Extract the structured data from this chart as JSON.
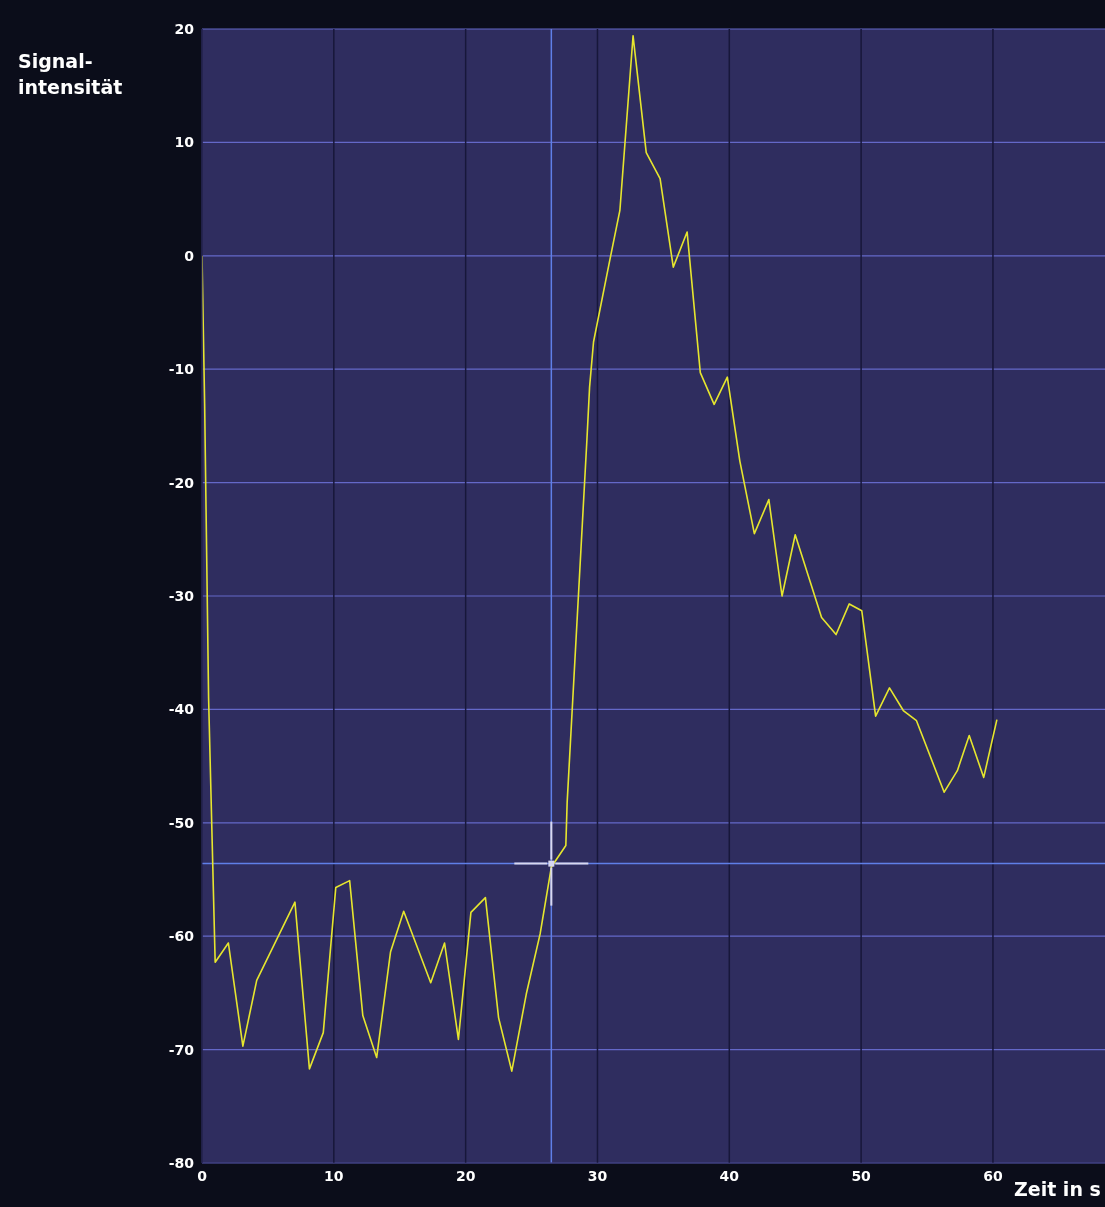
{
  "chart_data": {
    "type": "line",
    "xlabel": "Zeit in s",
    "ylabel": "Signal-intensität",
    "xlim": [
      0,
      68.5
    ],
    "xticks": [
      0,
      10,
      20,
      30,
      40,
      50,
      60
    ],
    "ylim": [
      -80,
      20
    ],
    "yticks": [
      -80,
      -70,
      -60,
      -50,
      -40,
      -30,
      -20,
      -10,
      0,
      10,
      20
    ],
    "grid": true,
    "marker": "none",
    "line_style": "solid",
    "ref_lines": [
      {
        "axis": "x",
        "value": 26.5,
        "color": "#5f7fe8"
      },
      {
        "axis": "y",
        "value": -53.6,
        "color": "#5f7fe8"
      }
    ],
    "series": [
      {
        "color": "#e6e62e",
        "x": [
          0,
          0.2,
          0.5,
          1.0,
          2.0,
          3.1,
          4.15,
          7.05,
          8.15,
          9.2,
          10.15,
          11.2,
          12.2,
          13.25,
          14.3,
          15.3,
          17.35,
          18.4,
          19.45,
          20.4,
          21.5,
          22.5,
          23.5,
          24.6,
          25.65,
          26.5,
          27.6,
          27.7,
          29.2,
          29.4,
          29.7,
          30.95,
          31.7,
          32.7,
          33.7,
          34.75,
          35.75,
          36.8,
          37.8,
          38.85,
          39.85,
          40.8,
          41.9,
          43.0,
          44.0,
          45.0,
          47.0,
          48.1,
          49.1,
          50.05,
          51.1,
          52.15,
          53.2,
          54.2,
          56.3,
          57.3,
          58.2,
          59.3,
          60.3
        ],
        "values": [
          0,
          -13,
          -39,
          -62.3,
          -60.6,
          -69.7,
          -63.9,
          -57.0,
          -71.7,
          -68.5,
          -55.7,
          -55.1,
          -67.0,
          -70.7,
          -61.4,
          -57.8,
          -64.1,
          -60.6,
          -69.1,
          -57.9,
          -56.6,
          -67.2,
          -71.9,
          -65.1,
          -59.8,
          -53.9,
          -52.0,
          -48.2,
          -16.2,
          -11.6,
          -7.6,
          -0.3,
          4.0,
          19.4,
          9.1,
          6.8,
          -1.0,
          2.1,
          -10.3,
          -13.1,
          -10.7,
          -18.1,
          -24.5,
          -21.5,
          -30.0,
          -24.6,
          -31.9,
          -33.4,
          -30.7,
          -31.3,
          -40.6,
          -38.1,
          -40.1,
          -41.0,
          -47.3,
          -45.4,
          -42.3,
          -46.0,
          -40.9
        ]
      }
    ]
  }
}
